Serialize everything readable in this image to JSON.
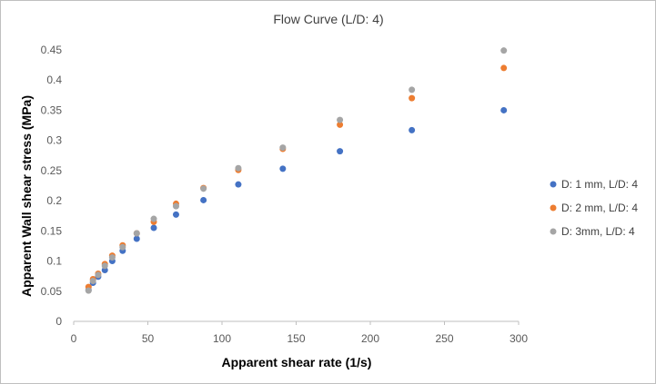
{
  "chart_data": {
    "type": "scatter",
    "title": "Flow Curve (L/D: 4)",
    "xlabel": "Apparent shear rate (1/s)",
    "ylabel": "Apparent Wall shear stress (MPa)",
    "xlim": [
      0,
      300
    ],
    "ylim": [
      0,
      0.45
    ],
    "x_ticks": [
      0,
      50,
      100,
      150,
      200,
      250,
      300
    ],
    "y_ticks": [
      0,
      0.05,
      0.1,
      0.15,
      0.2,
      0.25,
      0.3,
      0.35,
      0.4,
      0.45
    ],
    "x_tick_labels": [
      "0",
      "50",
      "100",
      "150",
      "200",
      "250",
      "300"
    ],
    "y_tick_labels": [
      "0",
      "0.05",
      "0.1",
      "0.15",
      "0.2",
      "0.25",
      "0.3",
      "0.35",
      "0.4",
      "0.45"
    ],
    "grid": false,
    "legend_position": "right",
    "series": [
      {
        "name": "D: 1 mm, L/D: 4",
        "color": "#4472c4",
        "x": [
          10,
          13,
          16.5,
          21,
          26,
          33,
          42.5,
          54,
          69,
          87.5,
          111,
          141,
          179.5,
          228,
          290
        ],
        "y": [
          0.052,
          0.064,
          0.074,
          0.085,
          0.1,
          0.117,
          0.137,
          0.155,
          0.177,
          0.201,
          0.227,
          0.253,
          0.282,
          0.317,
          0.35
        ]
      },
      {
        "name": "D: 2 mm, L/D: 4",
        "color": "#ed7d31",
        "x": [
          10,
          13,
          16.5,
          21,
          26,
          33,
          42.5,
          54,
          69,
          87.5,
          111,
          141,
          179.5,
          228,
          290
        ],
        "y": [
          0.057,
          0.07,
          0.079,
          0.095,
          0.109,
          0.126,
          0.146,
          0.165,
          0.195,
          0.221,
          0.251,
          0.286,
          0.326,
          0.37,
          0.42
        ]
      },
      {
        "name": "D: 3mm, L/D: 4",
        "color": "#a5a5a5",
        "x": [
          10,
          13,
          16.5,
          21,
          26,
          33,
          42.5,
          54,
          69,
          87.5,
          111,
          141,
          179.5,
          228,
          290
        ],
        "y": [
          0.051,
          0.067,
          0.077,
          0.092,
          0.106,
          0.123,
          0.146,
          0.17,
          0.191,
          0.22,
          0.254,
          0.288,
          0.334,
          0.384,
          0.449
        ]
      }
    ]
  }
}
